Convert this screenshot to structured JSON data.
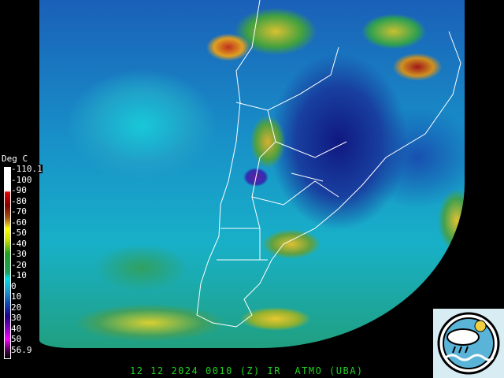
{
  "colorbar": {
    "unit": "Deg C",
    "labels": [
      "-110.1",
      "-100",
      "-90",
      "-80",
      "-70",
      "-60",
      "-50",
      "-40",
      "-30",
      "-20",
      "-10",
      "0",
      "10",
      "20",
      "30",
      "40",
      "50",
      "56.9"
    ]
  },
  "footer": {
    "caption": "12 12 2024 0010 (Z) IR  ATMO (UBA)"
  },
  "logo": {
    "name": "atmo-uba-logo-icon"
  }
}
